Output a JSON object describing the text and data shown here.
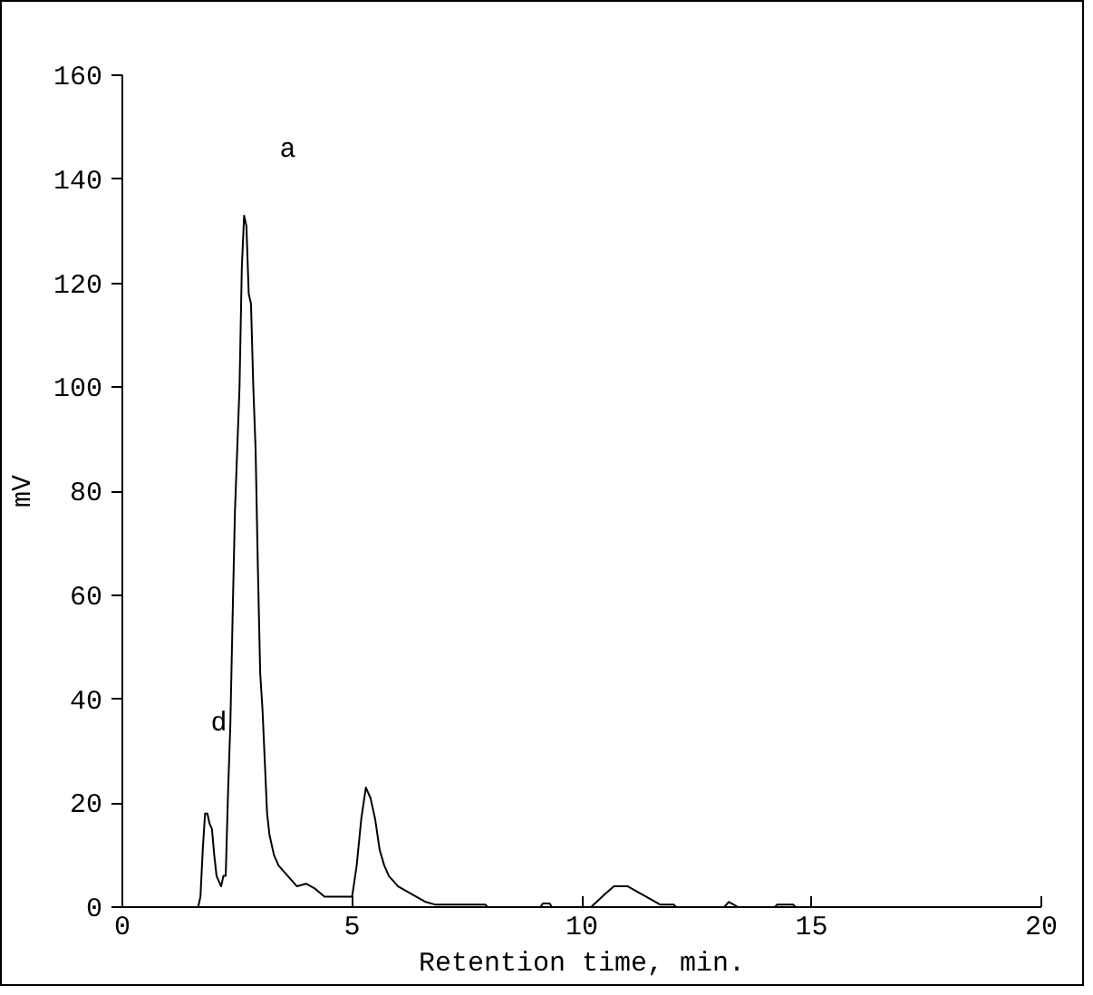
{
  "chart_data": {
    "type": "line",
    "xlabel": "Retention time, min.",
    "ylabel": "mV",
    "x": [
      1.65,
      1.7,
      1.75,
      1.8,
      1.85,
      1.9,
      1.95,
      2.0,
      2.05,
      2.1,
      2.15,
      2.2,
      2.25,
      2.3,
      2.35,
      2.4,
      2.45,
      2.5,
      2.55,
      2.6,
      2.65,
      2.7,
      2.75,
      2.8,
      2.85,
      2.9,
      2.95,
      3.0,
      3.05,
      3.1,
      3.15,
      3.2,
      3.3,
      3.4,
      3.6,
      3.8,
      4.0,
      4.2,
      4.4,
      4.6,
      5.0,
      5.1,
      5.2,
      5.3,
      5.4,
      5.5,
      5.6,
      5.7,
      5.8,
      6.0,
      6.2,
      6.4,
      6.6,
      6.8,
      7.9,
      7.95,
      9.1,
      9.15,
      9.3,
      9.35,
      10.2,
      10.5,
      10.7,
      11.0,
      11.2,
      11.5,
      11.7,
      12.0,
      12.05,
      13.1,
      13.2,
      13.3,
      13.4,
      14.2,
      14.25,
      14.6,
      14.65,
      20
    ],
    "series": [
      {
        "color": "#000000",
        "values": [
          0,
          2,
          11,
          18,
          18,
          16,
          15,
          10,
          6,
          5,
          4,
          6,
          6,
          22,
          35,
          56,
          76,
          88,
          100,
          123,
          133,
          131,
          118,
          116,
          100,
          88,
          65,
          45,
          38,
          28,
          18,
          14,
          10,
          8,
          6,
          4,
          4.5,
          3.5,
          2,
          2,
          2,
          8,
          17,
          23,
          21,
          17,
          11,
          8,
          6,
          4,
          3,
          2,
          1,
          0.5,
          0.5,
          0,
          0,
          0.7,
          0.7,
          0,
          0,
          2.5,
          4,
          4,
          3,
          1.5,
          0.5,
          0.5,
          0,
          0,
          1,
          0.5,
          0,
          0,
          0.5,
          0.5,
          0,
          0
        ]
      }
    ],
    "annotations": [
      "a",
      "d"
    ],
    "xlim": [
      0,
      20
    ],
    "ylim": [
      0,
      160
    ],
    "xticks": [
      0,
      5,
      10,
      15,
      20
    ],
    "yticks": [
      0,
      20,
      40,
      60,
      80,
      100,
      120,
      140,
      160
    ],
    "grid": false,
    "marker": "none",
    "line_style": "solid"
  }
}
